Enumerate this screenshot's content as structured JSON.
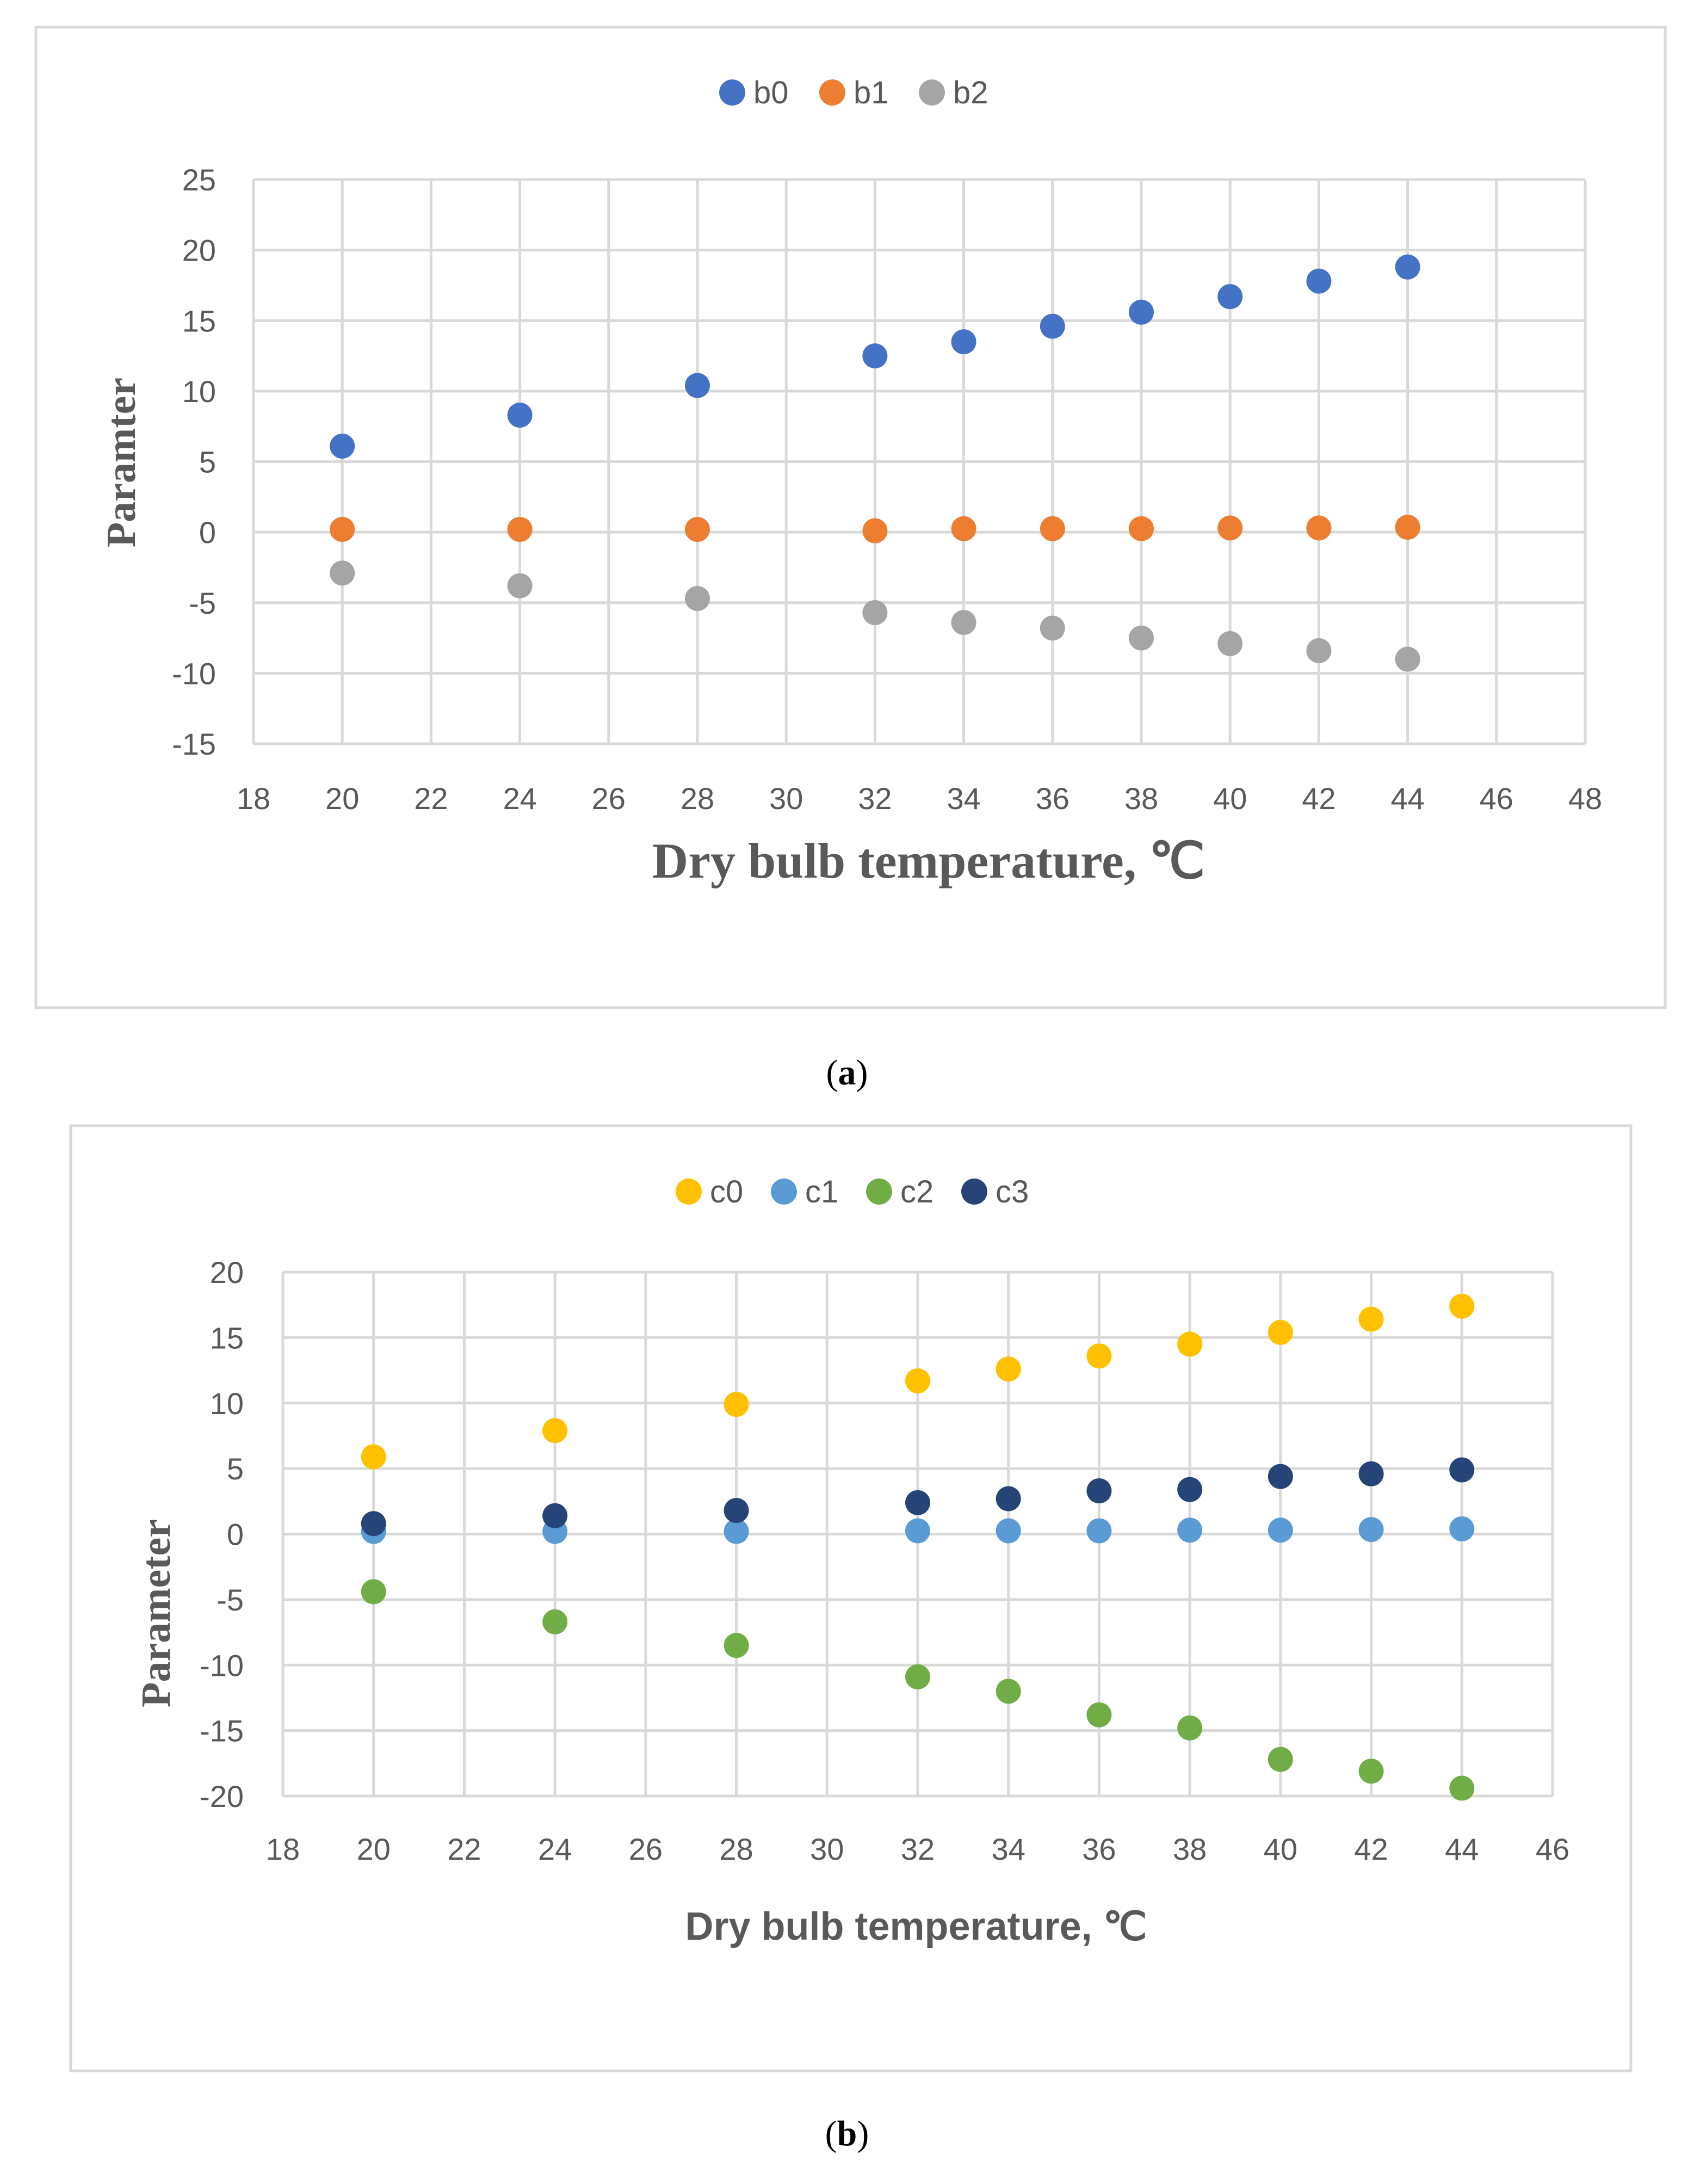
{
  "colors": {
    "b0": "#4472C4",
    "b1": "#ED7D31",
    "b2": "#A5A5A5",
    "c0": "#FFC000",
    "c1": "#5B9BD5",
    "c2": "#70AD47",
    "c3": "#264478",
    "grid": "#D9D9D9",
    "axis_text": "#595959",
    "frame": "#D9D9D9"
  },
  "chart_data": [
    {
      "type": "scatter",
      "caption_letter": "a",
      "xlabel": "Dry bulb temperature, ℃",
      "ylabel": "Paramter",
      "xlim": [
        18,
        48
      ],
      "ylim": [
        -15,
        25
      ],
      "x_ticks": [
        18,
        20,
        22,
        24,
        26,
        28,
        30,
        32,
        34,
        36,
        38,
        40,
        42,
        44,
        46,
        48
      ],
      "y_ticks": [
        25,
        20,
        15,
        10,
        5,
        0,
        -5,
        -10,
        -15
      ],
      "x": [
        20,
        24,
        28,
        32,
        34,
        36,
        38,
        40,
        42,
        44
      ],
      "series": [
        {
          "name": "b0",
          "color_key": "b0",
          "values": [
            6.1,
            8.3,
            10.4,
            12.5,
            13.5,
            14.6,
            15.6,
            16.7,
            17.8,
            18.8
          ]
        },
        {
          "name": "b1",
          "color_key": "b1",
          "values": [
            0.2,
            0.2,
            0.2,
            0.1,
            0.25,
            0.25,
            0.25,
            0.3,
            0.3,
            0.35
          ]
        },
        {
          "name": "b2",
          "color_key": "b2",
          "values": [
            -2.9,
            -3.8,
            -4.7,
            -5.7,
            -6.4,
            -6.8,
            -7.5,
            -7.9,
            -8.4,
            -9.0
          ]
        }
      ]
    },
    {
      "type": "scatter",
      "caption_letter": "b",
      "xlabel": "Dry bulb temperature, ℃",
      "ylabel": "Parameter",
      "xlim": [
        18,
        46
      ],
      "ylim": [
        -20,
        20
      ],
      "x_ticks": [
        18,
        20,
        22,
        24,
        26,
        28,
        30,
        32,
        34,
        36,
        38,
        40,
        42,
        44,
        46
      ],
      "y_ticks": [
        20,
        15,
        10,
        5,
        0,
        -5,
        -10,
        -15,
        -20
      ],
      "x": [
        20,
        24,
        28,
        32,
        34,
        36,
        38,
        40,
        42,
        44
      ],
      "series": [
        {
          "name": "c0",
          "color_key": "c0",
          "values": [
            5.9,
            7.9,
            9.9,
            11.7,
            12.6,
            13.6,
            14.5,
            15.4,
            16.4,
            17.4
          ]
        },
        {
          "name": "c1",
          "color_key": "c1",
          "values": [
            0.2,
            0.2,
            0.2,
            0.25,
            0.25,
            0.25,
            0.3,
            0.3,
            0.35,
            0.4
          ]
        },
        {
          "name": "c2",
          "color_key": "c2",
          "values": [
            -4.4,
            -6.7,
            -8.5,
            -10.9,
            -12.0,
            -13.8,
            -14.8,
            -17.2,
            -18.1,
            -19.4
          ]
        },
        {
          "name": "c3",
          "color_key": "c3",
          "values": [
            0.8,
            1.4,
            1.8,
            2.4,
            2.7,
            3.3,
            3.4,
            4.4,
            4.6,
            4.9
          ]
        }
      ]
    }
  ]
}
